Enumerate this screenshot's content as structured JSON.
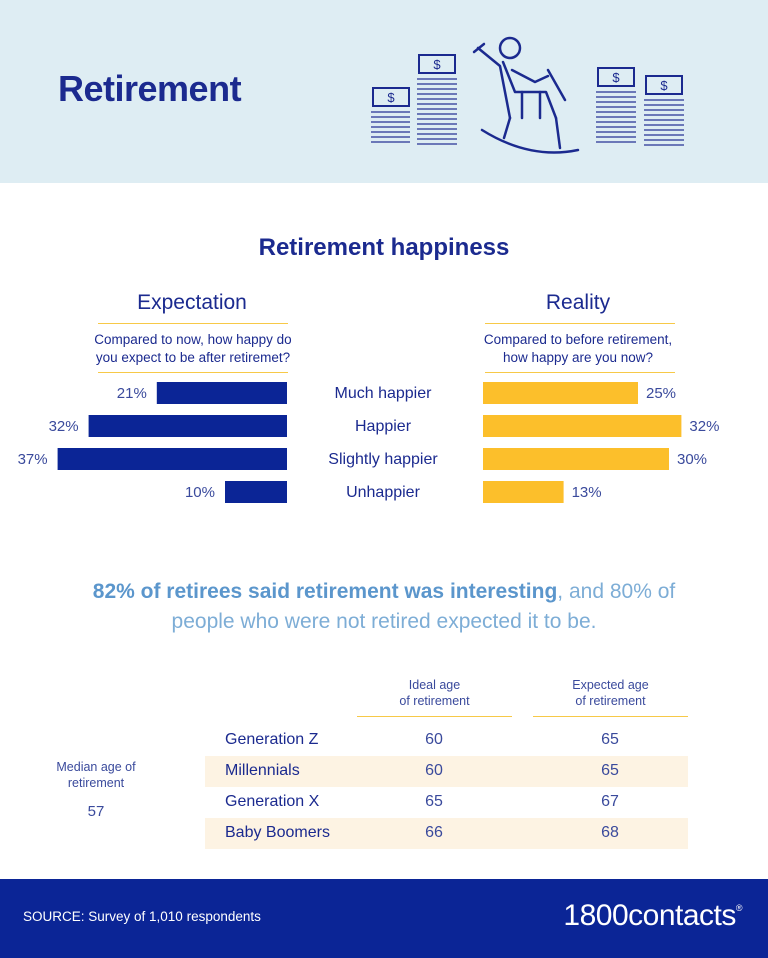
{
  "header": {
    "title": "Retirement"
  },
  "section": {
    "title": "Retirement happiness"
  },
  "expectation": {
    "title": "Expectation",
    "question_line1": "Compared to now, how happy do",
    "question_line2": "you expect to be after retiremet?"
  },
  "reality": {
    "title": "Reality",
    "question_line1": "Compared to before retirement,",
    "question_line2": "how happy are you now?"
  },
  "chart_data": {
    "type": "bar",
    "orientation": "horizontal-diverging",
    "categories": [
      "Much happier",
      "Happier",
      "Slightly happier",
      "Unhappier"
    ],
    "series": [
      {
        "name": "Expectation",
        "values": [
          21,
          32,
          37,
          10
        ],
        "labels": [
          "21%",
          "32%",
          "37%",
          "10%"
        ],
        "color": "#0b2596"
      },
      {
        "name": "Reality",
        "values": [
          25,
          32,
          30,
          13
        ],
        "labels": [
          "25%",
          "32%",
          "30%",
          "13%"
        ],
        "color": "#fcbf2b"
      }
    ]
  },
  "callout": {
    "bold": "82% of retirees said retirement was interesting",
    "rest_line1": ", and 80% of",
    "line2": "people who were not retired expected it to be."
  },
  "table": {
    "col1_line1": "Ideal age",
    "col1_line2": "of retirement",
    "col2_line1": "Expected age",
    "col2_line2": "of retirement",
    "rows": [
      {
        "gen": "Generation Z",
        "ideal": "60",
        "expected": "65"
      },
      {
        "gen": "Millennials",
        "ideal": "60",
        "expected": "65"
      },
      {
        "gen": "Generation X",
        "ideal": "65",
        "expected": "67"
      },
      {
        "gen": "Baby Boomers",
        "ideal": "66",
        "expected": "68"
      }
    ],
    "median_line1": "Median age of",
    "median_line2": "retirement",
    "median_value": "57"
  },
  "footer": {
    "source": "SOURCE: Survey of 1,010 respondents",
    "logo": "1800contacts",
    "logo_mark": "®"
  },
  "colors": {
    "navy": "#0b2596",
    "gold": "#fcbf2b",
    "header_bg": "#deedf3",
    "title": "#1b2a8f"
  },
  "icons": [
    "stacked-money-icon",
    "rocking-chair-person-icon"
  ]
}
